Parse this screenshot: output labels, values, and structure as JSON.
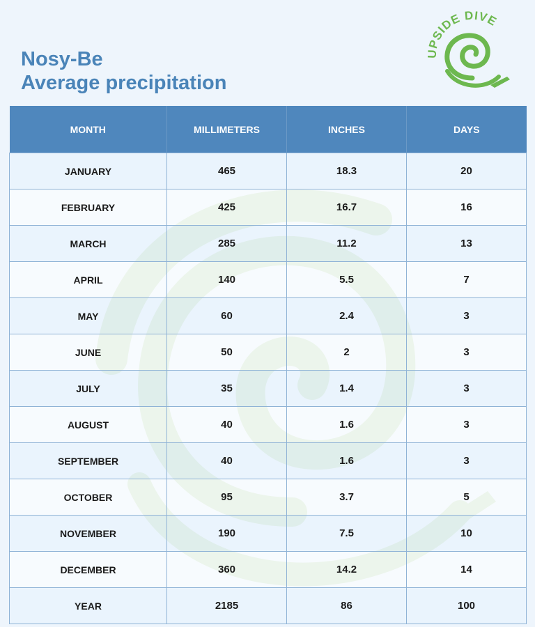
{
  "title": {
    "line1": "Nosy-Be",
    "line2": "Average precipitation"
  },
  "logo": {
    "text": "UPSIDE DIVE",
    "color": "#6db84f"
  },
  "colors": {
    "header": "#4f87bd",
    "title": "#4a84b8",
    "border": "#8fb3d6"
  },
  "table": {
    "headers": [
      "MONTH",
      "MILLIMETERS",
      "INCHES",
      "DAYS"
    ],
    "rows": [
      [
        "JANUARY",
        "465",
        "18.3",
        "20"
      ],
      [
        "FEBRUARY",
        "425",
        "16.7",
        "16"
      ],
      [
        "MARCH",
        "285",
        "11.2",
        "13"
      ],
      [
        "APRIL",
        "140",
        "5.5",
        "7"
      ],
      [
        "MAY",
        "60",
        "2.4",
        "3"
      ],
      [
        "JUNE",
        "50",
        "2",
        "3"
      ],
      [
        "JULY",
        "35",
        "1.4",
        "3"
      ],
      [
        "AUGUST",
        "40",
        "1.6",
        "3"
      ],
      [
        "SEPTEMBER",
        "40",
        "1.6",
        "3"
      ],
      [
        "OCTOBER",
        "95",
        "3.7",
        "5"
      ],
      [
        "NOVEMBER",
        "190",
        "7.5",
        "10"
      ],
      [
        "DECEMBER",
        "360",
        "14.2",
        "14"
      ],
      [
        "YEAR",
        "2185",
        "86",
        "100"
      ]
    ]
  }
}
